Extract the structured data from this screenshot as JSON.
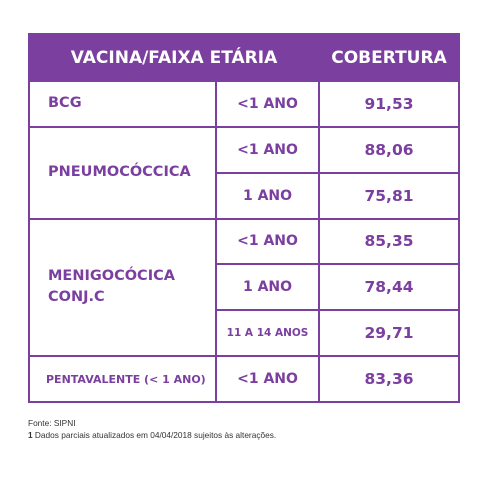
{
  "chart_data": {
    "type": "table",
    "headers": {
      "vaccine_age": "VACINA/FAIXA ETÁRIA",
      "coverage": "COBERTURA"
    },
    "rows": [
      {
        "vaccine": "BCG",
        "age": "<1 ANO",
        "coverage": "91,53"
      },
      {
        "vaccine": "PNEUMOCÓCCICA",
        "age": "<1 ANO",
        "coverage": "88,06"
      },
      {
        "vaccine": "PNEUMOCÓCCICA",
        "age": "1 ANO",
        "coverage": "75,81"
      },
      {
        "vaccine": "MENIGOCÓCICA CONJ.C",
        "age": "<1 ANO",
        "coverage": "85,35"
      },
      {
        "vaccine": "MENIGOCÓCICA CONJ.C",
        "age": "1 ANO",
        "coverage": "78,44"
      },
      {
        "vaccine": "MENIGOCÓCICA CONJ.C",
        "age": "11 A 14 ANOS",
        "coverage": "29,71"
      },
      {
        "vaccine": "PENTAVALENTE (< 1 ANO)",
        "age": "<1 ANO",
        "coverage": "83,36"
      }
    ],
    "groups": {
      "bcg": "BCG",
      "pneumo": "PNEUMOCÓCCICA",
      "menigo_line1": "MENIGOCÓCICA",
      "menigo_line2": "CONJ.C",
      "penta": "PENTAVALENTE (< 1 ANO)"
    },
    "colors": {
      "accent": "#7b3fa0",
      "header_text": "#ffffff"
    }
  },
  "notes": {
    "source": "Fonte: SIPNI",
    "footnote_marker": "1",
    "footnote_text": " Dados parciais atualizados em 04/04/2018 sujeitos às alterações."
  }
}
